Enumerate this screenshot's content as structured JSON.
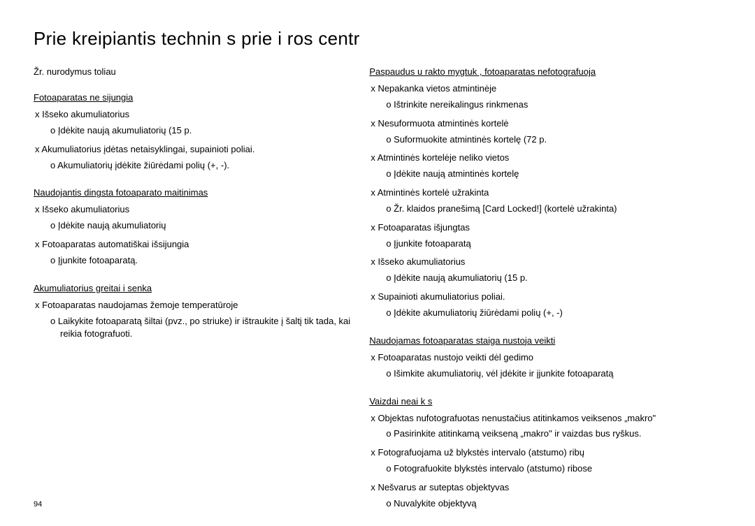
{
  "title": "Prie  kreipiantis   technin s prie i ros centr",
  "intro": "Žr. nurodymus toliau",
  "pageNumber": "94",
  "left": {
    "sections": [
      {
        "heading": "Fotoaparatas ne sijungia",
        "items": [
          {
            "x": "Išseko akumuliatorius",
            "o": [
              "Įdėkite naują akumuliatorių (15 p."
            ]
          },
          {
            "x": "Akumuliatorius įdėtas netaisyklingai, supainioti poliai.",
            "o": [
              "Akumuliatorių įdėkite žiūrėdami polių (+, -)."
            ]
          }
        ]
      },
      {
        "heading": "Naudojantis dingsta fotoaparato maitinimas",
        "items": [
          {
            "x": "Išseko akumuliatorius",
            "o": [
              "Įdėkite naują akumuliatorių"
            ]
          },
          {
            "x": "Fotoaparatas automatiškai išsijungia",
            "o": [
              "Įjunkite fotoaparatą."
            ]
          }
        ]
      },
      {
        "heading": "Akumuliatorius greitai i senka",
        "items": [
          {
            "x": "Fotoaparatas naudojamas žemoje temperatūroje",
            "o": [
              "Laikykite fotoaparatą šiltai (pvz., po striuke) ir ištraukite į šaltį tik tada, kai reikia fotografuoti."
            ]
          }
        ]
      }
    ]
  },
  "right": {
    "sections": [
      {
        "heading": "Paspaudus u rakto mygtuk , fotoaparatas nefotografuoja",
        "items": [
          {
            "x": "Nepakanka vietos atmintinėje",
            "o": [
              "Ištrinkite nereikalingus rinkmenas"
            ]
          },
          {
            "x": "Nesuformuota atmintinės kortelė",
            "o": [
              "Suformuokite atmintinės kortelę (72 p."
            ]
          },
          {
            "x": "Atmintinės kortelėje neliko vietos",
            "o": [
              "Įdėkite naują atmintinės kortelę"
            ]
          },
          {
            "x": "Atmintinės kortelė užrakinta",
            "o": [
              "Žr. klaidos pranešimą [Card Locked!] (kortelė užrakinta)"
            ]
          },
          {
            "x": "Fotoaparatas išjungtas",
            "o": [
              "Įjunkite fotoaparatą"
            ]
          },
          {
            "x": "Išseko akumuliatorius",
            "o": [
              "Įdėkite naują akumuliatorių (15 p."
            ]
          },
          {
            "x": "Supainioti akumuliatorius poliai.",
            "o": [
              "Įdėkite akumuliatorių žiūrėdami polių (+, -)"
            ]
          }
        ]
      },
      {
        "heading": "Naudojamas fotoaparatas staiga nustoja veikti",
        "items": [
          {
            "x": "Fotoaparatas nustojo veikti dėl gedimo",
            "o": [
              "Išimkite akumuliatorių, vėl įdėkite ir įjunkite fotoaparatą"
            ]
          }
        ]
      },
      {
        "heading": "Vaizdai neai k s",
        "items": [
          {
            "x": "Objektas nufotografuotas nenustačius atitinkamos veiksenos „makro\"",
            "o": [
              "Pasirinkite atitinkamą veikseną „makro\" ir vaizdas bus ryškus."
            ]
          },
          {
            "x": "Fotografuojama už blykstės intervalo (atstumo) ribų",
            "o": [
              "Fotografuokite blykstės intervalo (atstumo) ribose"
            ]
          },
          {
            "x": "Nešvarus ar suteptas objektyvas",
            "o": [
              "Nuvalykite objektyvą"
            ]
          }
        ]
      }
    ]
  }
}
